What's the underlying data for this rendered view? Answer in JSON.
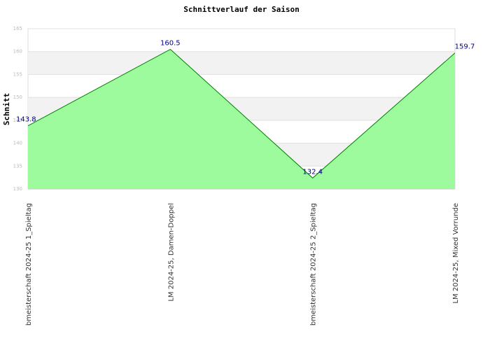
{
  "chart_data": {
    "type": "area",
    "title": "Schnittverlauf der Saison",
    "y_label": "Schnitt",
    "categories": [
      "bmeisterschaft 2024-25   1_Spieltag",
      "LM 2024-25, Damen-Doppel",
      "bmeisterschaft 2024-25   2_Spieltag",
      "LM 2024-25, Mixed Vorrunde"
    ],
    "values": [
      143.8,
      160.5,
      132.4,
      159.7
    ],
    "color": "#98fb98",
    "line_color": "#008000",
    "ylim": [
      130,
      165
    ],
    "yticks": [
      130,
      135,
      140,
      145,
      150,
      155,
      160,
      165
    ],
    "grid": true
  }
}
